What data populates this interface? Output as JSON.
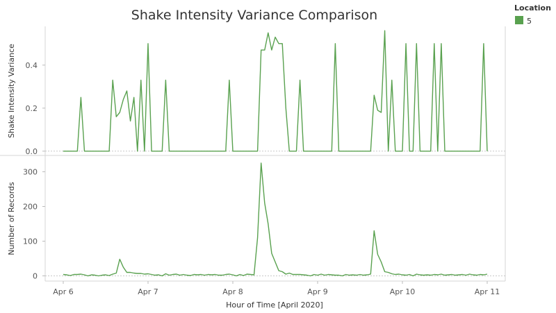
{
  "chart_data": {
    "type": "line",
    "title": "Shake Intensity Variance Comparison",
    "xlabel": "Hour of Time [April 2020]",
    "x_ticks": [
      "Apr 6",
      "Apr 7",
      "Apr 8",
      "Apr 9",
      "Apr 10",
      "Apr 11"
    ],
    "xlim_hours": [
      0,
      120
    ],
    "legend": {
      "title": "Location",
      "entries": [
        {
          "label": "5",
          "color": "#59a14f"
        }
      ],
      "placement": "top-right"
    },
    "line_color": "#59a14f",
    "grid": false,
    "panels": [
      {
        "ylabel": "Shake Intensity Variance",
        "ylim": [
          -0.02,
          0.58
        ],
        "y_ticks": [
          0.0,
          0.2,
          0.4
        ],
        "y_tick_labels": [
          "0.0",
          "0.2",
          "0.4"
        ],
        "zero_line": true,
        "series": [
          {
            "name": "5",
            "points": [
              [
                0,
                0
              ],
              [
                4,
                0
              ],
              [
                5,
                0.25
              ],
              [
                6,
                0
              ],
              [
                13,
                0
              ],
              [
                14,
                0.33
              ],
              [
                15,
                0.16
              ],
              [
                16,
                0.18
              ],
              [
                17,
                0.24
              ],
              [
                18,
                0.28
              ],
              [
                19,
                0.14
              ],
              [
                20,
                0.25
              ],
              [
                21,
                0
              ],
              [
                22,
                0.33
              ],
              [
                23,
                0
              ],
              [
                24,
                0.5
              ],
              [
                25,
                0
              ],
              [
                28,
                0
              ],
              [
                29,
                0.33
              ],
              [
                30,
                0
              ],
              [
                46,
                0
              ],
              [
                47,
                0.33
              ],
              [
                48,
                0
              ],
              [
                55,
                0
              ],
              [
                56,
                0.47
              ],
              [
                57,
                0.47
              ],
              [
                58,
                0.55
              ],
              [
                59,
                0.47
              ],
              [
                60,
                0.53
              ],
              [
                61,
                0.5
              ],
              [
                62,
                0.5
              ],
              [
                63,
                0.2
              ],
              [
                64,
                0
              ],
              [
                66,
                0
              ],
              [
                67,
                0.33
              ],
              [
                68,
                0
              ],
              [
                76,
                0
              ],
              [
                77,
                0.5
              ],
              [
                78,
                0
              ],
              [
                87,
                0
              ],
              [
                88,
                0.26
              ],
              [
                89,
                0.19
              ],
              [
                90,
                0.18
              ],
              [
                91,
                0.56
              ],
              [
                92,
                0
              ],
              [
                93,
                0.33
              ],
              [
                94,
                0
              ],
              [
                96,
                0
              ],
              [
                97,
                0.5
              ],
              [
                98,
                0
              ],
              [
                99,
                0
              ],
              [
                100,
                0.5
              ],
              [
                101,
                0
              ],
              [
                104,
                0
              ],
              [
                105,
                0.5
              ],
              [
                106,
                0
              ],
              [
                107,
                0.5
              ],
              [
                108,
                0
              ],
              [
                118,
                0
              ],
              [
                119,
                0.5
              ],
              [
                120,
                0
              ]
            ]
          }
        ]
      },
      {
        "ylabel": "Number of Records",
        "ylim": [
          -15,
          345
        ],
        "y_ticks": [
          0,
          100,
          200,
          300
        ],
        "y_tick_labels": [
          "0",
          "100",
          "200",
          "300"
        ],
        "zero_line": true,
        "series": [
          {
            "name": "5",
            "points": [
              [
                0,
                4
              ],
              [
                1,
                3
              ],
              [
                2,
                1
              ],
              [
                3,
                4
              ],
              [
                4,
                4
              ],
              [
                5,
                5
              ],
              [
                6,
                3
              ],
              [
                7,
                0
              ],
              [
                8,
                3
              ],
              [
                9,
                2
              ],
              [
                10,
                0
              ],
              [
                11,
                2
              ],
              [
                12,
                3
              ],
              [
                13,
                1
              ],
              [
                14,
                5
              ],
              [
                15,
                8
              ],
              [
                16,
                48
              ],
              [
                17,
                25
              ],
              [
                18,
                10
              ],
              [
                19,
                10
              ],
              [
                20,
                8
              ],
              [
                21,
                7
              ],
              [
                22,
                7
              ],
              [
                23,
                5
              ],
              [
                24,
                6
              ],
              [
                25,
                4
              ],
              [
                26,
                2
              ],
              [
                27,
                3
              ],
              [
                28,
                0
              ],
              [
                29,
                6
              ],
              [
                30,
                2
              ],
              [
                31,
                4
              ],
              [
                32,
                5
              ],
              [
                33,
                2
              ],
              [
                34,
                4
              ],
              [
                35,
                2
              ],
              [
                36,
                1
              ],
              [
                37,
                4
              ],
              [
                38,
                3
              ],
              [
                39,
                4
              ],
              [
                40,
                2
              ],
              [
                41,
                4
              ],
              [
                42,
                3
              ],
              [
                43,
                4
              ],
              [
                44,
                2
              ],
              [
                45,
                2
              ],
              [
                46,
                4
              ],
              [
                47,
                5
              ],
              [
                48,
                3
              ],
              [
                49,
                0
              ],
              [
                50,
                4
              ],
              [
                51,
                1
              ],
              [
                52,
                5
              ],
              [
                53,
                4
              ],
              [
                54,
                3
              ],
              [
                55,
                110
              ],
              [
                56,
                325
              ],
              [
                57,
                210
              ],
              [
                58,
                150
              ],
              [
                59,
                65
              ],
              [
                60,
                40
              ],
              [
                61,
                15
              ],
              [
                62,
                12
              ],
              [
                63,
                5
              ],
              [
                64,
                8
              ],
              [
                65,
                4
              ],
              [
                66,
                4
              ],
              [
                67,
                4
              ],
              [
                68,
                3
              ],
              [
                69,
                2
              ],
              [
                70,
                0
              ],
              [
                71,
                4
              ],
              [
                72,
                2
              ],
              [
                73,
                5
              ],
              [
                74,
                2
              ],
              [
                75,
                4
              ],
              [
                76,
                3
              ],
              [
                77,
                2
              ],
              [
                78,
                2
              ],
              [
                79,
                0
              ],
              [
                80,
                4
              ],
              [
                81,
                2
              ],
              [
                82,
                3
              ],
              [
                83,
                2
              ],
              [
                84,
                4
              ],
              [
                85,
                2
              ],
              [
                86,
                3
              ],
              [
                87,
                5
              ],
              [
                88,
                130
              ],
              [
                89,
                62
              ],
              [
                90,
                40
              ],
              [
                91,
                12
              ],
              [
                92,
                10
              ],
              [
                93,
                6
              ],
              [
                94,
                4
              ],
              [
                95,
                5
              ],
              [
                96,
                3
              ],
              [
                97,
                2
              ],
              [
                98,
                4
              ],
              [
                99,
                0
              ],
              [
                100,
                5
              ],
              [
                101,
                3
              ],
              [
                102,
                2
              ],
              [
                103,
                3
              ],
              [
                104,
                2
              ],
              [
                105,
                4
              ],
              [
                106,
                3
              ],
              [
                107,
                5
              ],
              [
                108,
                2
              ],
              [
                109,
                3
              ],
              [
                110,
                4
              ],
              [
                111,
                2
              ],
              [
                112,
                3
              ],
              [
                113,
                4
              ],
              [
                114,
                2
              ],
              [
                115,
                5
              ],
              [
                116,
                3
              ],
              [
                117,
                2
              ],
              [
                118,
                4
              ],
              [
                119,
                3
              ],
              [
                120,
                5
              ]
            ]
          }
        ]
      }
    ]
  }
}
